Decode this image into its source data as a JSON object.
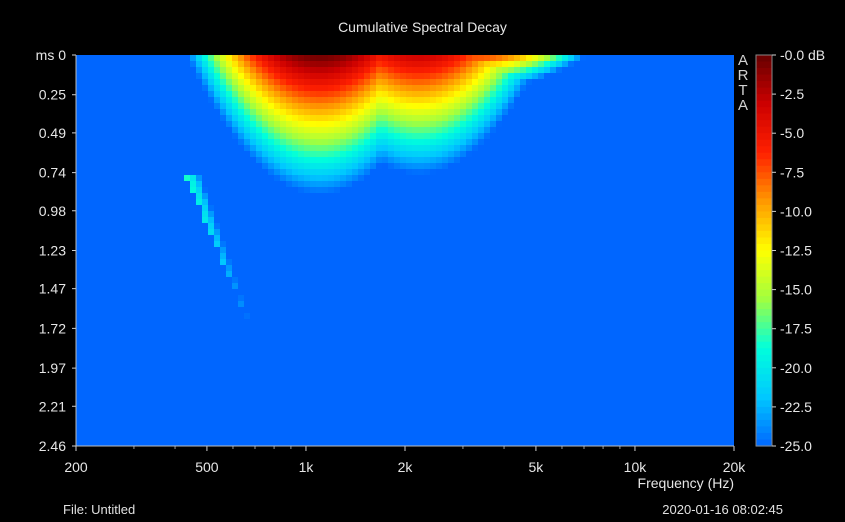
{
  "window": {
    "title": "Cumulative Spectral Decay",
    "file_label": "File: Untitled",
    "timestamp": "2020-01-16  08:02:45",
    "brand": "ARTA"
  },
  "chart_data": {
    "type": "heatmap",
    "title": "Cumulative Spectral Decay",
    "xlabel": "Frequency (Hz)",
    "ylabel": "ms",
    "x_scale": "log",
    "xlim": [
      200,
      20000
    ],
    "ylim": [
      0,
      2.46
    ],
    "y_inverted": true,
    "x_ticks": [
      {
        "value": 200,
        "label": "200"
      },
      {
        "value": 500,
        "label": "500"
      },
      {
        "value": 1000,
        "label": "1k"
      },
      {
        "value": 2000,
        "label": "2k"
      },
      {
        "value": 5000,
        "label": "5k"
      },
      {
        "value": 10000,
        "label": "10k"
      },
      {
        "value": 20000,
        "label": "20k"
      }
    ],
    "y_ticks": [
      {
        "value": 0,
        "label": "ms 0"
      },
      {
        "value": 0.25,
        "label": "0.25"
      },
      {
        "value": 0.49,
        "label": "0.49"
      },
      {
        "value": 0.74,
        "label": "0.74"
      },
      {
        "value": 0.98,
        "label": "0.98"
      },
      {
        "value": 1.23,
        "label": "1.23"
      },
      {
        "value": 1.47,
        "label": "1.47"
      },
      {
        "value": 1.72,
        "label": "1.72"
      },
      {
        "value": 1.97,
        "label": "1.97"
      },
      {
        "value": 2.21,
        "label": "2.21"
      },
      {
        "value": 2.46,
        "label": "2.46"
      }
    ],
    "colorbar": {
      "unit": "dB",
      "range": [
        -25,
        0
      ],
      "ticks": [
        {
          "value": 0,
          "label": "-0.0 dB"
        },
        {
          "value": -2.5,
          "label": "-2.5"
        },
        {
          "value": -5,
          "label": "-5.0"
        },
        {
          "value": -7.5,
          "label": "-7.5"
        },
        {
          "value": -10,
          "label": "-10.0"
        },
        {
          "value": -12.5,
          "label": "-12.5"
        },
        {
          "value": -15,
          "label": "-15.0"
        },
        {
          "value": -17.5,
          "label": "-17.5"
        },
        {
          "value": -20,
          "label": "-20.0"
        },
        {
          "value": -22.5,
          "label": "-22.5"
        },
        {
          "value": -25,
          "label": "-25.0"
        }
      ]
    },
    "colormap": [
      "#0066ff",
      "#00c8ff",
      "#00ffdc",
      "#a0ff40",
      "#ffff00",
      "#ff9900",
      "#ff2000",
      "#cc0000",
      "#660000"
    ],
    "background_level_db": -25,
    "decay_model": {
      "window_edge_ms": [
        {
          "hz": 300,
          "ms": 0
        },
        {
          "hz": 700,
          "ms": 1.78
        }
      ],
      "ridges": [
        {
          "hz": 1100,
          "db": 0,
          "decay_ms_per_db": 0.035
        },
        {
          "hz": 2200,
          "db": -3,
          "decay_ms_per_db": 0.034
        },
        {
          "hz": 3200,
          "db": -6,
          "decay_ms_per_db": 0.012
        }
      ],
      "resonance": {
        "hz_start": 420,
        "hz_end": 640,
        "ms_start": 0.75,
        "ms_end": 1.72,
        "db": -18
      }
    }
  }
}
